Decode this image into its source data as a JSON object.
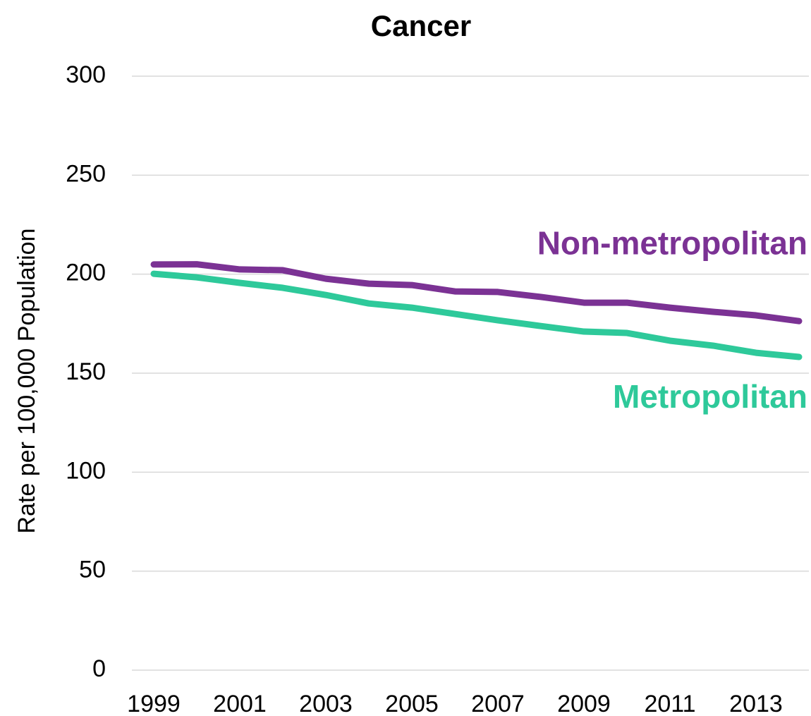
{
  "chart_data": {
    "type": "line",
    "title": "Cancer",
    "y_label": "Rate per 100,000 Population",
    "x": [
      1999,
      2000,
      2001,
      2002,
      2003,
      2004,
      2005,
      2006,
      2007,
      2008,
      2009,
      2010,
      2011,
      2012,
      2013,
      2014
    ],
    "xlim": [
      1999,
      2014
    ],
    "xticks": [
      1999,
      2001,
      2003,
      2005,
      2007,
      2009,
      2011,
      2013
    ],
    "ylim": [
      0,
      300
    ],
    "yticks": [
      0,
      50,
      100,
      150,
      200,
      250,
      300
    ],
    "grid": true,
    "series": [
      {
        "name": "Non-metropolitan",
        "color": "#7b3294",
        "values": [
          204.9,
          205,
          202.4,
          202,
          197.7,
          195.2,
          194.5,
          191.3,
          191,
          188.5,
          185.6,
          185.6,
          183.1,
          181,
          179.2,
          176.3
        ]
      },
      {
        "name": "Metropolitan",
        "color": "#2ec99a",
        "values": [
          200.2,
          198.4,
          195.6,
          193.1,
          189.5,
          185.2,
          183.1,
          179.9,
          176.7,
          173.8,
          171,
          170.3,
          166.4,
          163.9,
          160.3,
          158.2
        ]
      }
    ]
  }
}
